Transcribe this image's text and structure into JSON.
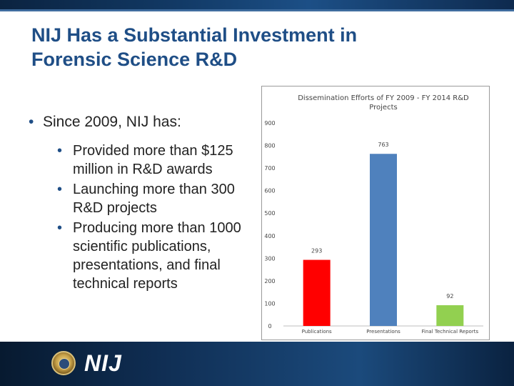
{
  "slide": {
    "title_line1": "NIJ Has a Substantial Investment in",
    "title_line2": "Forensic Science R&D",
    "bullet_main": "Since 2009, NIJ has:",
    "sub_bullets": [
      "Provided more than $125 million in R&D awards",
      "Launching more than 300 R&D projects",
      "Producing more than 1000 scientific publications, presentations, and final technical reports"
    ]
  },
  "footer": {
    "logo_text": "NIJ",
    "seal_icon": "doj-seal-icon"
  },
  "chart_data": {
    "type": "bar",
    "title": "Dissemination Efforts of FY 2009 - FY 2014 R&D Projects",
    "categories": [
      "Publications",
      "Presentations",
      "Final Technical Reports"
    ],
    "values": [
      293,
      763,
      92
    ],
    "colors": [
      "#ff0000",
      "#4f81bd",
      "#92d050"
    ],
    "ylim": [
      0,
      900
    ],
    "yticks": [
      0,
      100,
      200,
      300,
      400,
      500,
      600,
      700,
      800,
      900
    ],
    "grid": false,
    "data_labels": true
  }
}
